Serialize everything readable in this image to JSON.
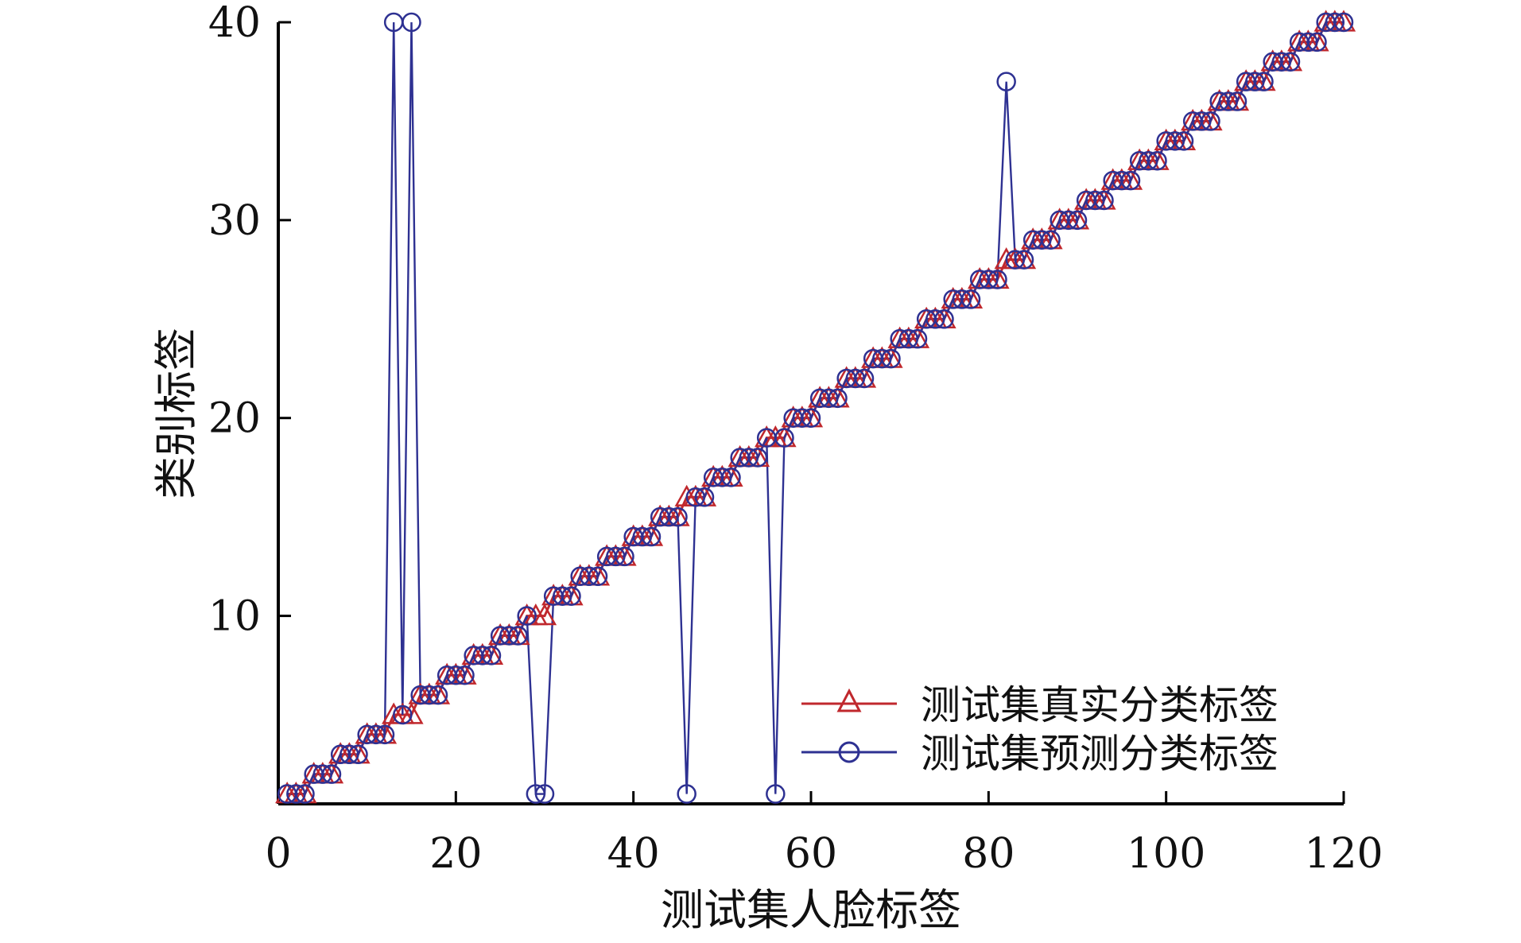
{
  "chart_data": {
    "type": "line",
    "title": "",
    "xlabel": "测试集人脸标签",
    "ylabel": "类别标签",
    "xlim": [
      0,
      120
    ],
    "ylim": [
      0.5,
      40
    ],
    "xticks": [
      "0",
      "20",
      "40",
      "60",
      "80",
      "100",
      "120"
    ],
    "yticks": [
      "10",
      "20",
      "30",
      "40"
    ],
    "grid": false,
    "legend_position": "bottom-right",
    "x": [
      1,
      2,
      3,
      4,
      5,
      6,
      7,
      8,
      9,
      10,
      11,
      12,
      13,
      14,
      15,
      16,
      17,
      18,
      19,
      20,
      21,
      22,
      23,
      24,
      25,
      26,
      27,
      28,
      29,
      30,
      31,
      32,
      33,
      34,
      35,
      36,
      37,
      38,
      39,
      40,
      41,
      42,
      43,
      44,
      45,
      46,
      47,
      48,
      49,
      50,
      51,
      52,
      53,
      54,
      55,
      56,
      57,
      58,
      59,
      60,
      61,
      62,
      63,
      64,
      65,
      66,
      67,
      68,
      69,
      70,
      71,
      72,
      73,
      74,
      75,
      76,
      77,
      78,
      79,
      80,
      81,
      82,
      83,
      84,
      85,
      86,
      87,
      88,
      89,
      90,
      91,
      92,
      93,
      94,
      95,
      96,
      97,
      98,
      99,
      100,
      101,
      102,
      103,
      104,
      105,
      106,
      107,
      108,
      109,
      110,
      111,
      112,
      113,
      114,
      115,
      116,
      117,
      118,
      119,
      120
    ],
    "series": [
      {
        "name": "测试集真实分类标签",
        "color": "#c0282d",
        "marker": "triangle",
        "values": [
          1,
          1,
          1,
          2,
          2,
          2,
          3,
          3,
          3,
          4,
          4,
          4,
          5,
          5,
          5,
          6,
          6,
          6,
          7,
          7,
          7,
          8,
          8,
          8,
          9,
          9,
          9,
          10,
          10,
          10,
          11,
          11,
          11,
          12,
          12,
          12,
          13,
          13,
          13,
          14,
          14,
          14,
          15,
          15,
          15,
          16,
          16,
          16,
          17,
          17,
          17,
          18,
          18,
          18,
          19,
          19,
          19,
          20,
          20,
          20,
          21,
          21,
          21,
          22,
          22,
          22,
          23,
          23,
          23,
          24,
          24,
          24,
          25,
          25,
          25,
          26,
          26,
          26,
          27,
          27,
          27,
          28,
          28,
          28,
          29,
          29,
          29,
          30,
          30,
          30,
          31,
          31,
          31,
          32,
          32,
          32,
          33,
          33,
          33,
          34,
          34,
          34,
          35,
          35,
          35,
          36,
          36,
          36,
          37,
          37,
          37,
          38,
          38,
          38,
          39,
          39,
          39,
          40,
          40,
          40
        ]
      },
      {
        "name": "测试集预测分类标签",
        "color": "#2e3192",
        "marker": "circle",
        "values": [
          1,
          1,
          1,
          2,
          2,
          2,
          3,
          3,
          3,
          4,
          4,
          4,
          40,
          5,
          40,
          6,
          6,
          6,
          7,
          7,
          7,
          8,
          8,
          8,
          9,
          9,
          9,
          10,
          1,
          1,
          11,
          11,
          11,
          12,
          12,
          12,
          13,
          13,
          13,
          14,
          14,
          14,
          15,
          15,
          15,
          1,
          16,
          16,
          17,
          17,
          17,
          18,
          18,
          18,
          19,
          1,
          19,
          20,
          20,
          20,
          21,
          21,
          21,
          22,
          22,
          22,
          23,
          23,
          23,
          24,
          24,
          24,
          25,
          25,
          25,
          26,
          26,
          26,
          27,
          27,
          27,
          37,
          28,
          28,
          29,
          29,
          29,
          30,
          30,
          30,
          31,
          31,
          31,
          32,
          32,
          32,
          33,
          33,
          33,
          34,
          34,
          34,
          35,
          35,
          35,
          36,
          36,
          36,
          37,
          37,
          37,
          38,
          38,
          38,
          39,
          39,
          39,
          40,
          40,
          40
        ]
      }
    ]
  }
}
